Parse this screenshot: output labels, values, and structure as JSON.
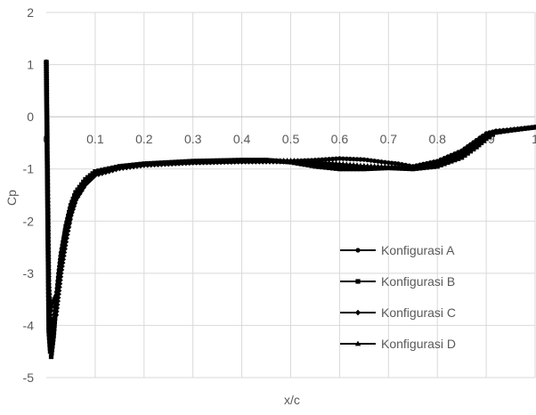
{
  "chart_data": {
    "type": "scatter",
    "title": "",
    "xlabel": "x/c",
    "ylabel": "Cp",
    "xlim": [
      0,
      1
    ],
    "ylim": [
      -5,
      2
    ],
    "x_ticks": [
      "0",
      "0.1",
      "0.2",
      "0.3",
      "0.4",
      "0.5",
      "0.6",
      "0.7",
      "0.8",
      "0.9",
      "1"
    ],
    "y_ticks": [
      "2",
      "1",
      "0",
      "-1",
      "-2",
      "-3",
      "-4",
      "-5"
    ],
    "grid": true,
    "legend_position": "bottom-right",
    "colors": {
      "series": "#000000",
      "grid": "#d9d9d9",
      "text": "#595959"
    },
    "series": [
      {
        "name": "Konfigurasi A",
        "marker": "circle",
        "x": [
          0,
          0.005,
          0.01,
          0.015,
          0.02,
          0.025,
          0.03,
          0.04,
          0.05,
          0.06,
          0.07,
          0.08,
          0.1,
          0.15,
          0.2,
          0.3,
          0.4,
          0.5,
          0.55,
          0.6,
          0.65,
          0.7,
          0.72,
          0.75,
          0.8,
          0.85,
          0.88,
          0.9,
          0.92,
          0.95,
          1.0
        ],
        "y": [
          1.05,
          -3.8,
          -4.4,
          -4.0,
          -3.5,
          -3.0,
          -2.6,
          -2.1,
          -1.8,
          -1.55,
          -1.4,
          -1.25,
          -1.1,
          -0.98,
          -0.92,
          -0.88,
          -0.86,
          -0.85,
          -0.83,
          -0.8,
          -0.82,
          -0.88,
          -0.9,
          -0.95,
          -0.85,
          -0.65,
          -0.45,
          -0.32,
          -0.27,
          -0.25,
          -0.2
        ]
      },
      {
        "name": "Konfigurasi B",
        "marker": "square",
        "x": [
          0,
          0.005,
          0.008,
          0.01,
          0.015,
          0.02,
          0.025,
          0.03,
          0.04,
          0.05,
          0.06,
          0.08,
          0.1,
          0.15,
          0.2,
          0.3,
          0.4,
          0.45,
          0.5,
          0.55,
          0.6,
          0.65,
          0.7,
          0.75,
          0.8,
          0.85,
          0.88,
          0.9,
          0.92,
          0.95,
          1.0
        ],
        "y": [
          1.05,
          -4.1,
          -4.5,
          -4.6,
          -4.2,
          -3.6,
          -3.1,
          -2.7,
          -2.1,
          -1.7,
          -1.45,
          -1.2,
          -1.05,
          -0.95,
          -0.9,
          -0.85,
          -0.83,
          -0.83,
          -0.87,
          -0.95,
          -1.0,
          -1.0,
          -0.98,
          -1.0,
          -0.95,
          -0.78,
          -0.58,
          -0.42,
          -0.3,
          -0.26,
          -0.2
        ]
      },
      {
        "name": "Konfigurasi C",
        "marker": "diamond",
        "x": [
          0,
          0.005,
          0.01,
          0.02,
          0.03,
          0.04,
          0.05,
          0.06,
          0.08,
          0.1,
          0.15,
          0.2,
          0.3,
          0.4,
          0.5,
          0.55,
          0.6,
          0.65,
          0.7,
          0.75,
          0.8,
          0.85,
          0.88,
          0.9,
          0.92,
          0.95,
          1.0
        ],
        "y": [
          1.05,
          -3.2,
          -4.0,
          -3.8,
          -3.0,
          -2.4,
          -1.9,
          -1.6,
          -1.3,
          -1.12,
          -0.99,
          -0.93,
          -0.88,
          -0.86,
          -0.86,
          -0.88,
          -0.95,
          -0.97,
          -0.97,
          -0.98,
          -0.9,
          -0.72,
          -0.52,
          -0.38,
          -0.29,
          -0.25,
          -0.2
        ]
      },
      {
        "name": "Konfigurasi D",
        "marker": "triangle",
        "x": [
          0,
          0.005,
          0.01,
          0.015,
          0.02,
          0.03,
          0.04,
          0.05,
          0.06,
          0.08,
          0.1,
          0.15,
          0.2,
          0.3,
          0.4,
          0.5,
          0.55,
          0.6,
          0.65,
          0.7,
          0.75,
          0.8,
          0.85,
          0.88,
          0.9,
          0.92,
          0.95,
          1.0
        ],
        "y": [
          1.05,
          -3.4,
          -3.7,
          -3.5,
          -3.4,
          -2.9,
          -2.3,
          -1.85,
          -1.55,
          -1.25,
          -1.08,
          -0.96,
          -0.91,
          -0.87,
          -0.85,
          -0.84,
          -0.86,
          -0.9,
          -0.94,
          -0.96,
          -0.97,
          -0.88,
          -0.7,
          -0.5,
          -0.36,
          -0.28,
          -0.25,
          -0.2
        ]
      }
    ]
  }
}
